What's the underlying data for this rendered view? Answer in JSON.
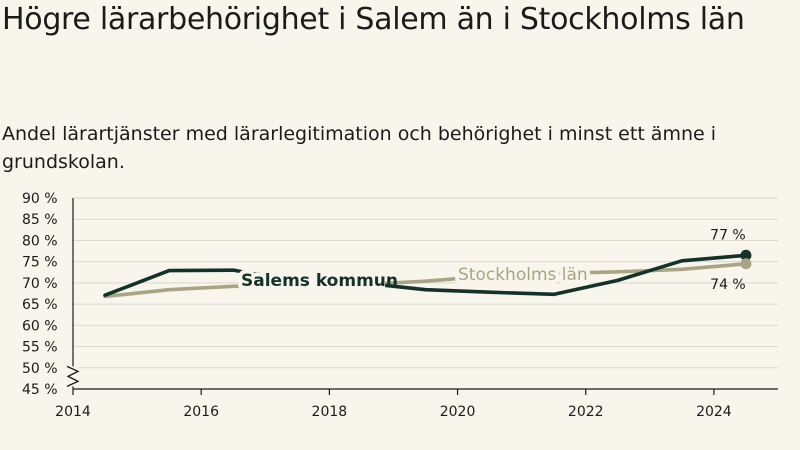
{
  "title": "Högre lärarbehörighet i Salem än i Stockholms län",
  "subtitle": "Andel lärartjänster med lärarlegitimation och behörighet i minst ett ämne i grundskolan.",
  "chart_data": {
    "type": "line",
    "x": [
      2014.5,
      2015.5,
      2016.5,
      2017.5,
      2018.5,
      2019.5,
      2020.5,
      2021.5,
      2022.5,
      2023.5,
      2024.5
    ],
    "xlim": [
      2014,
      2025
    ],
    "ylim": [
      45,
      90
    ],
    "x_ticks": [
      {
        "value": 2014,
        "label": "2014"
      },
      {
        "value": 2016,
        "label": "2016"
      },
      {
        "value": 2018,
        "label": "2018"
      },
      {
        "value": 2020,
        "label": "2020"
      },
      {
        "value": 2022,
        "label": "2022"
      },
      {
        "value": 2024,
        "label": "2024"
      }
    ],
    "y_ticks": [
      {
        "value": 45,
        "label": "45 %"
      },
      {
        "value": 50,
        "label": "50 %"
      },
      {
        "value": 55,
        "label": "55 %"
      },
      {
        "value": 60,
        "label": "60 %"
      },
      {
        "value": 65,
        "label": "65 %"
      },
      {
        "value": 70,
        "label": "70 %"
      },
      {
        "value": 75,
        "label": "75 %"
      },
      {
        "value": 80,
        "label": "80 %"
      },
      {
        "value": 85,
        "label": "85 %"
      },
      {
        "value": 90,
        "label": "90 %"
      }
    ],
    "axis_break": true,
    "grid": true,
    "series": [
      {
        "name": "Salems kommun",
        "color": "#13332a",
        "values": [
          67.1,
          72.9,
          73.0,
          70.4,
          70.0,
          68.4,
          67.8,
          67.3,
          70.6,
          75.2,
          76.5
        ],
        "end_label": "77 %"
      },
      {
        "name": "Stockholms län",
        "color": "#a9a584",
        "values": [
          66.8,
          68.4,
          69.2,
          69.4,
          69.6,
          70.4,
          71.6,
          72.2,
          72.6,
          73.2,
          74.5
        ],
        "end_label": "74 %"
      }
    ]
  }
}
